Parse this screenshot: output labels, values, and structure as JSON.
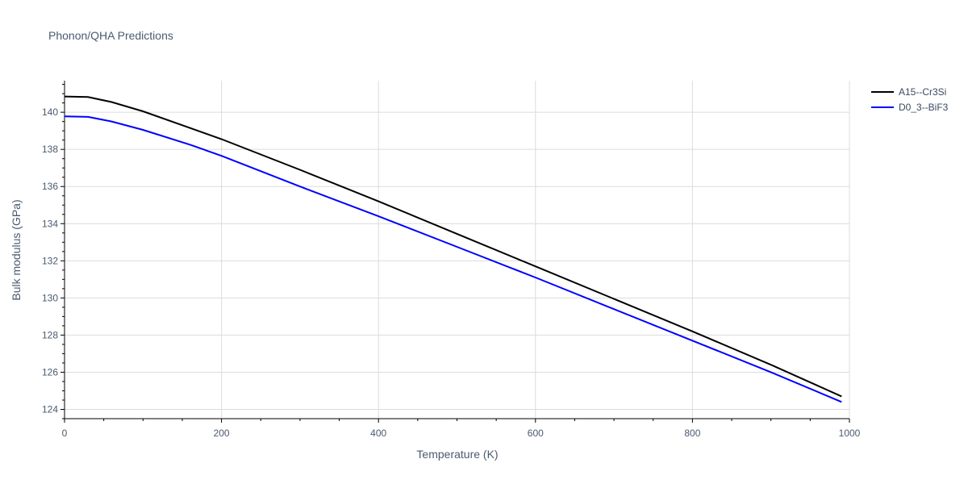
{
  "chart_data": {
    "type": "line",
    "title": "Phonon/QHA Predictions",
    "xlabel": "Temperature (K)",
    "ylabel": "Bulk modulus (GPa)",
    "xlim": [
      0,
      1000
    ],
    "ylim": [
      123.5,
      141.7
    ],
    "x_ticks": [
      0,
      200,
      400,
      600,
      800,
      1000
    ],
    "y_ticks": [
      124,
      126,
      128,
      130,
      132,
      134,
      136,
      138,
      140
    ],
    "grid": true,
    "legend_position": "top-right",
    "series": [
      {
        "name": "A15--Cr3Si",
        "color": "#000000",
        "x": [
          0,
          30,
          60,
          100,
          160,
          200,
          300,
          400,
          500,
          600,
          700,
          800,
          900,
          990
        ],
        "y": [
          140.85,
          140.82,
          140.55,
          140.05,
          139.15,
          138.55,
          136.9,
          135.2,
          133.45,
          131.7,
          129.95,
          128.2,
          126.4,
          124.7
        ]
      },
      {
        "name": "D0_3--BiF3",
        "color": "#0000ff",
        "x": [
          0,
          30,
          60,
          100,
          160,
          200,
          300,
          400,
          500,
          600,
          700,
          800,
          900,
          990
        ],
        "y": [
          139.78,
          139.75,
          139.5,
          139.05,
          138.25,
          137.65,
          136.0,
          134.4,
          132.75,
          131.1,
          129.4,
          127.7,
          126.0,
          124.4
        ]
      }
    ]
  }
}
